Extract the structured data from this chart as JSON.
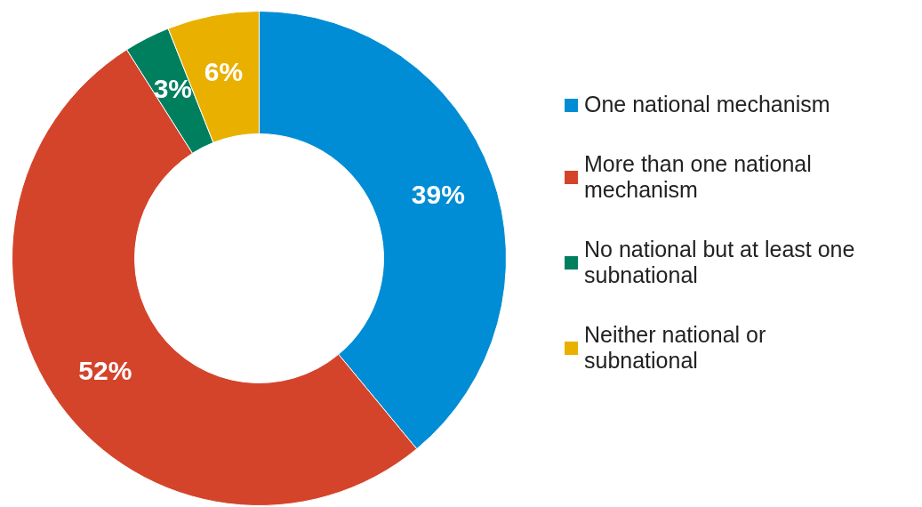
{
  "chart_data": {
    "type": "donut",
    "categories": [
      "One national mechanism",
      "More than one national mechanism",
      "No national but at least one subnational",
      "Neither national or subnational"
    ],
    "values": [
      39,
      52,
      3,
      6
    ],
    "colors": [
      "#008dd5",
      "#d4442b",
      "#007f5f",
      "#e9b000"
    ],
    "value_labels": [
      "39%",
      "52%",
      "3%",
      "6%"
    ],
    "legend": "right"
  }
}
